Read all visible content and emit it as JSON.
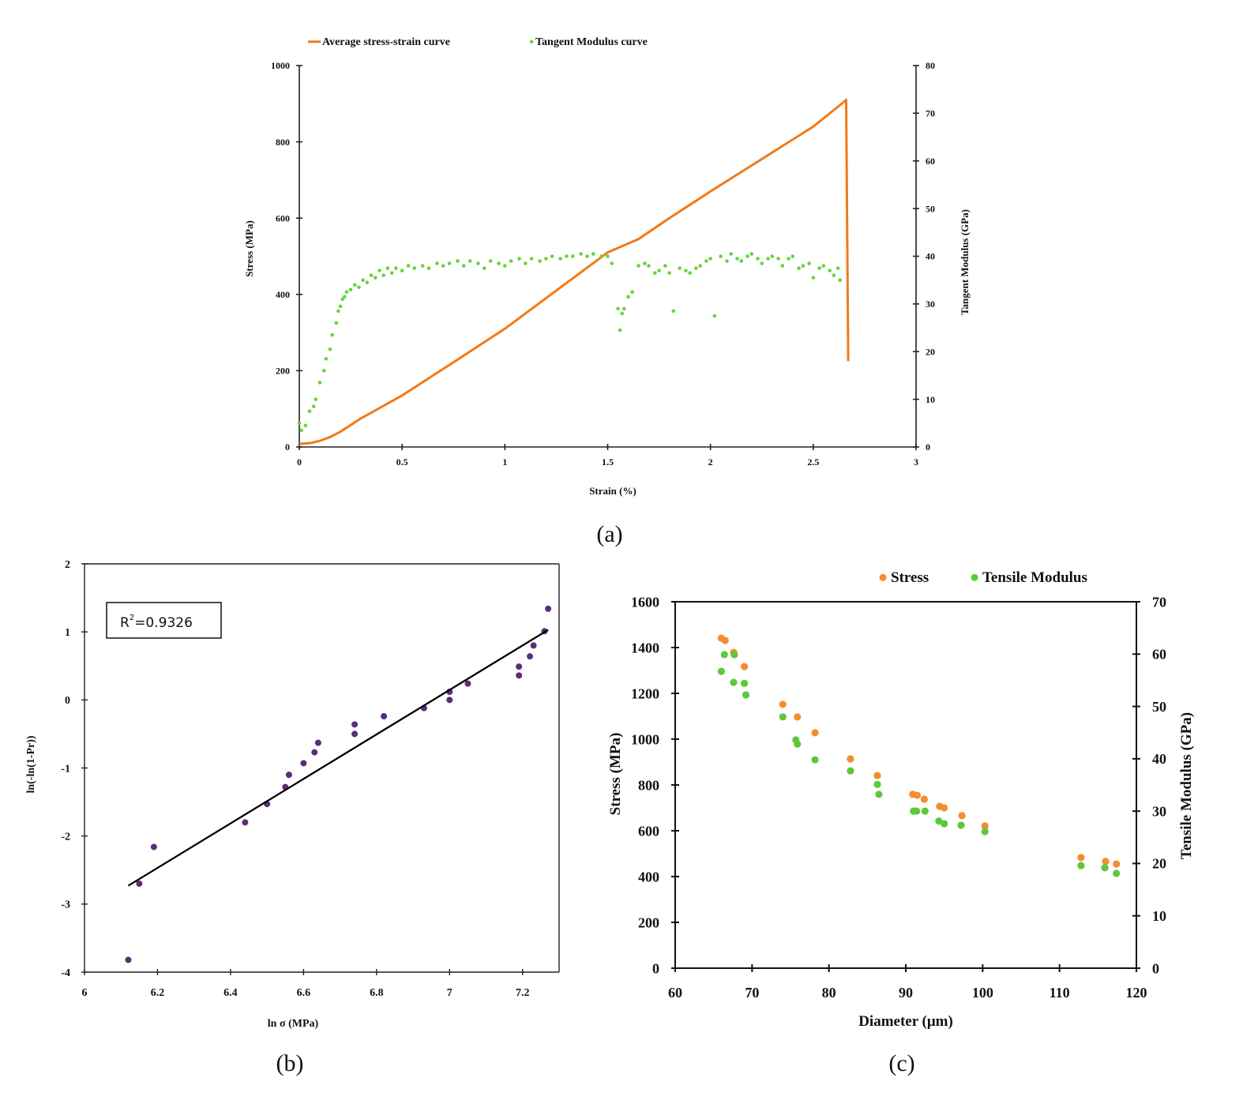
{
  "chart_data": [
    {
      "panel_label": "(a)",
      "type": "line+scatter",
      "xlabel": "Strain (%)",
      "ylabel": "Stress (MPa)",
      "ylabel_right": "Tangent Modulus (GPa)",
      "xlim": [
        0,
        3
      ],
      "ylim": [
        0,
        1000
      ],
      "ylim_right": [
        0,
        80
      ],
      "xticks": [
        "0",
        "0.5",
        "1",
        "1.5",
        "2",
        "2.5",
        "3"
      ],
      "yticks": [
        "0",
        "200",
        "400",
        "600",
        "800",
        "1000"
      ],
      "yticks_right": [
        "0",
        "10",
        "20",
        "30",
        "40",
        "50",
        "60",
        "70",
        "80"
      ],
      "grid": false,
      "legend_position": "top",
      "series": [
        {
          "name": "Average stress-strain curve",
          "type": "line",
          "axis": "left",
          "color": "#f07a1a",
          "x": [
            0,
            0.05,
            0.1,
            0.15,
            0.2,
            0.3,
            0.4,
            0.5,
            0.75,
            1.0,
            1.25,
            1.5,
            1.65,
            1.8,
            2.0,
            2.25,
            2.5,
            2.65,
            2.66,
            2.67
          ],
          "y": [
            8,
            10,
            16,
            26,
            40,
            75,
            105,
            135,
            222,
            310,
            410,
            510,
            545,
            600,
            670,
            755,
            840,
            905,
            910,
            225
          ]
        },
        {
          "name": "Tangent Modulus curve",
          "type": "scatter",
          "axis": "right",
          "color": "#66d43a",
          "x": [
            0,
            0.01,
            0.03,
            0.05,
            0.07,
            0.08,
            0.1,
            0.12,
            0.13,
            0.15,
            0.16,
            0.18,
            0.19,
            0.2,
            0.21,
            0.22,
            0.23,
            0.25,
            0.27,
            0.29,
            0.31,
            0.33,
            0.35,
            0.37,
            0.39,
            0.41,
            0.43,
            0.45,
            0.47,
            0.5,
            0.53,
            0.56,
            0.6,
            0.63,
            0.67,
            0.7,
            0.73,
            0.77,
            0.8,
            0.83,
            0.87,
            0.9,
            0.93,
            0.97,
            1.0,
            1.03,
            1.07,
            1.1,
            1.13,
            1.17,
            1.2,
            1.23,
            1.27,
            1.3,
            1.33,
            1.37,
            1.4,
            1.43,
            1.47,
            1.5,
            1.52,
            1.55,
            1.56,
            1.57,
            1.58,
            1.6,
            1.62,
            1.65,
            1.68,
            1.7,
            1.73,
            1.75,
            1.78,
            1.8,
            1.82,
            1.85,
            1.88,
            1.9,
            1.93,
            1.95,
            1.98,
            2.0,
            2.02,
            2.05,
            2.08,
            2.1,
            2.13,
            2.15,
            2.18,
            2.2,
            2.23,
            2.25,
            2.28,
            2.3,
            2.33,
            2.35,
            2.38,
            2.4,
            2.43,
            2.45,
            2.48,
            2.5,
            2.53,
            2.55,
            2.58,
            2.6,
            2.62,
            2.63
          ],
          "y": [
            5,
            3.5,
            4.5,
            7.5,
            8.5,
            10,
            13.5,
            16,
            18.5,
            20.5,
            23.5,
            26,
            28.5,
            29.5,
            31,
            31.5,
            32.5,
            33,
            34,
            33.5,
            35,
            34.5,
            36,
            35.5,
            37,
            36,
            37.5,
            36.5,
            37.5,
            37,
            38,
            37.5,
            38,
            37.5,
            38.5,
            38,
            38.5,
            39,
            38,
            39,
            38.5,
            37.5,
            39,
            38.5,
            38,
            39,
            39.5,
            38.5,
            39.5,
            39,
            39.5,
            40,
            39.5,
            40,
            40,
            40.5,
            40,
            40.5,
            40,
            40,
            38.5,
            29,
            24.5,
            28,
            29,
            31.5,
            32.5,
            38,
            38.5,
            38,
            36.5,
            37,
            38,
            36.5,
            28.5,
            37.5,
            37,
            36.5,
            37.5,
            38,
            39,
            39.5,
            27.5,
            40,
            39,
            40.5,
            39.5,
            39,
            40,
            40.5,
            39.5,
            38.5,
            39.5,
            40,
            39.5,
            38,
            39.5,
            40,
            37.5,
            38,
            38.5,
            35.5,
            37.5,
            38,
            37,
            36,
            37.5,
            35
          ]
        }
      ]
    },
    {
      "panel_label": "(b)",
      "type": "scatter",
      "xlabel": "ln σ (MPa)",
      "ylabel": "ln(-ln(1-Pr))",
      "xlim": [
        6,
        7.3
      ],
      "ylim": [
        -4,
        2
      ],
      "xticks": [
        "6",
        "6.2",
        "6.4",
        "6.6",
        "6.8",
        "7",
        "7.2"
      ],
      "yticks": [
        "-4",
        "-3",
        "-2",
        "-1",
        "0",
        "1",
        "2"
      ],
      "grid": false,
      "annotation": {
        "base": "R",
        "sup": "2",
        "text": "=0.9326"
      },
      "series": [
        {
          "type": "scatter",
          "color": "#5b2d7a",
          "x": [
            6.12,
            6.15,
            6.19,
            6.44,
            6.5,
            6.55,
            6.56,
            6.6,
            6.63,
            6.64,
            6.74,
            6.74,
            6.82,
            6.93,
            7.0,
            7.0,
            7.05,
            7.19,
            7.19,
            7.22,
            7.23,
            7.26,
            7.27
          ],
          "y": [
            -3.82,
            -2.7,
            -2.16,
            -1.8,
            -1.53,
            -1.28,
            -1.1,
            -0.93,
            -0.77,
            -0.63,
            -0.5,
            -0.36,
            -0.24,
            -0.12,
            0.0,
            0.12,
            0.24,
            0.36,
            0.49,
            0.64,
            0.8,
            1.01,
            1.34
          ]
        },
        {
          "type": "line",
          "color": "#000000",
          "x": [
            6.12,
            7.27
          ],
          "y": [
            -2.73,
            1.03
          ]
        }
      ]
    },
    {
      "panel_label": "(c)",
      "type": "scatter",
      "xlabel": "Diameter (μm)",
      "ylabel": "Stress (MPa)",
      "ylabel_right": "Tensile Modulus (GPa)",
      "xlim": [
        60,
        120
      ],
      "ylim": [
        0,
        1600
      ],
      "ylim_right": [
        0,
        70
      ],
      "xticks": [
        "60",
        "70",
        "80",
        "90",
        "100",
        "110",
        "120"
      ],
      "yticks": [
        "0",
        "200",
        "400",
        "600",
        "800",
        "1000",
        "1200",
        "1400",
        "1600"
      ],
      "yticks_right": [
        "0",
        "10",
        "20",
        "30",
        "40",
        "50",
        "60",
        "70"
      ],
      "grid": false,
      "legend_position": "top",
      "series": [
        {
          "name": "Stress",
          "axis": "left",
          "color": "#f58c2e",
          "x": [
            66.0,
            66.5,
            67.6,
            69.0,
            74.0,
            75.9,
            78.2,
            82.8,
            86.3,
            90.9,
            91.5,
            92.4,
            94.4,
            95.0,
            97.3,
            100.3,
            112.8,
            116.0,
            117.4
          ],
          "y": [
            1441,
            1431,
            1379,
            1317,
            1152,
            1097,
            1028,
            914,
            841,
            759,
            755,
            738,
            707,
            700,
            666,
            621,
            483,
            466,
            455
          ]
        },
        {
          "name": "Tensile Modulus",
          "axis": "right",
          "color": "#5cc83a",
          "x": [
            66.0,
            66.4,
            67.7,
            67.6,
            69.0,
            69.2,
            74.0,
            75.7,
            75.9,
            78.2,
            82.8,
            86.3,
            86.5,
            91.0,
            91.4,
            92.5,
            94.3,
            95.0,
            97.2,
            100.3,
            112.8,
            115.9,
            117.4
          ],
          "y": [
            56.7,
            59.9,
            59.9,
            54.6,
            54.4,
            52.2,
            48.0,
            43.6,
            42.8,
            39.8,
            37.7,
            35.1,
            33.2,
            30.0,
            30.0,
            30.0,
            28.1,
            27.6,
            27.3,
            26.1,
            19.6,
            19.2,
            18.1
          ]
        }
      ]
    }
  ]
}
